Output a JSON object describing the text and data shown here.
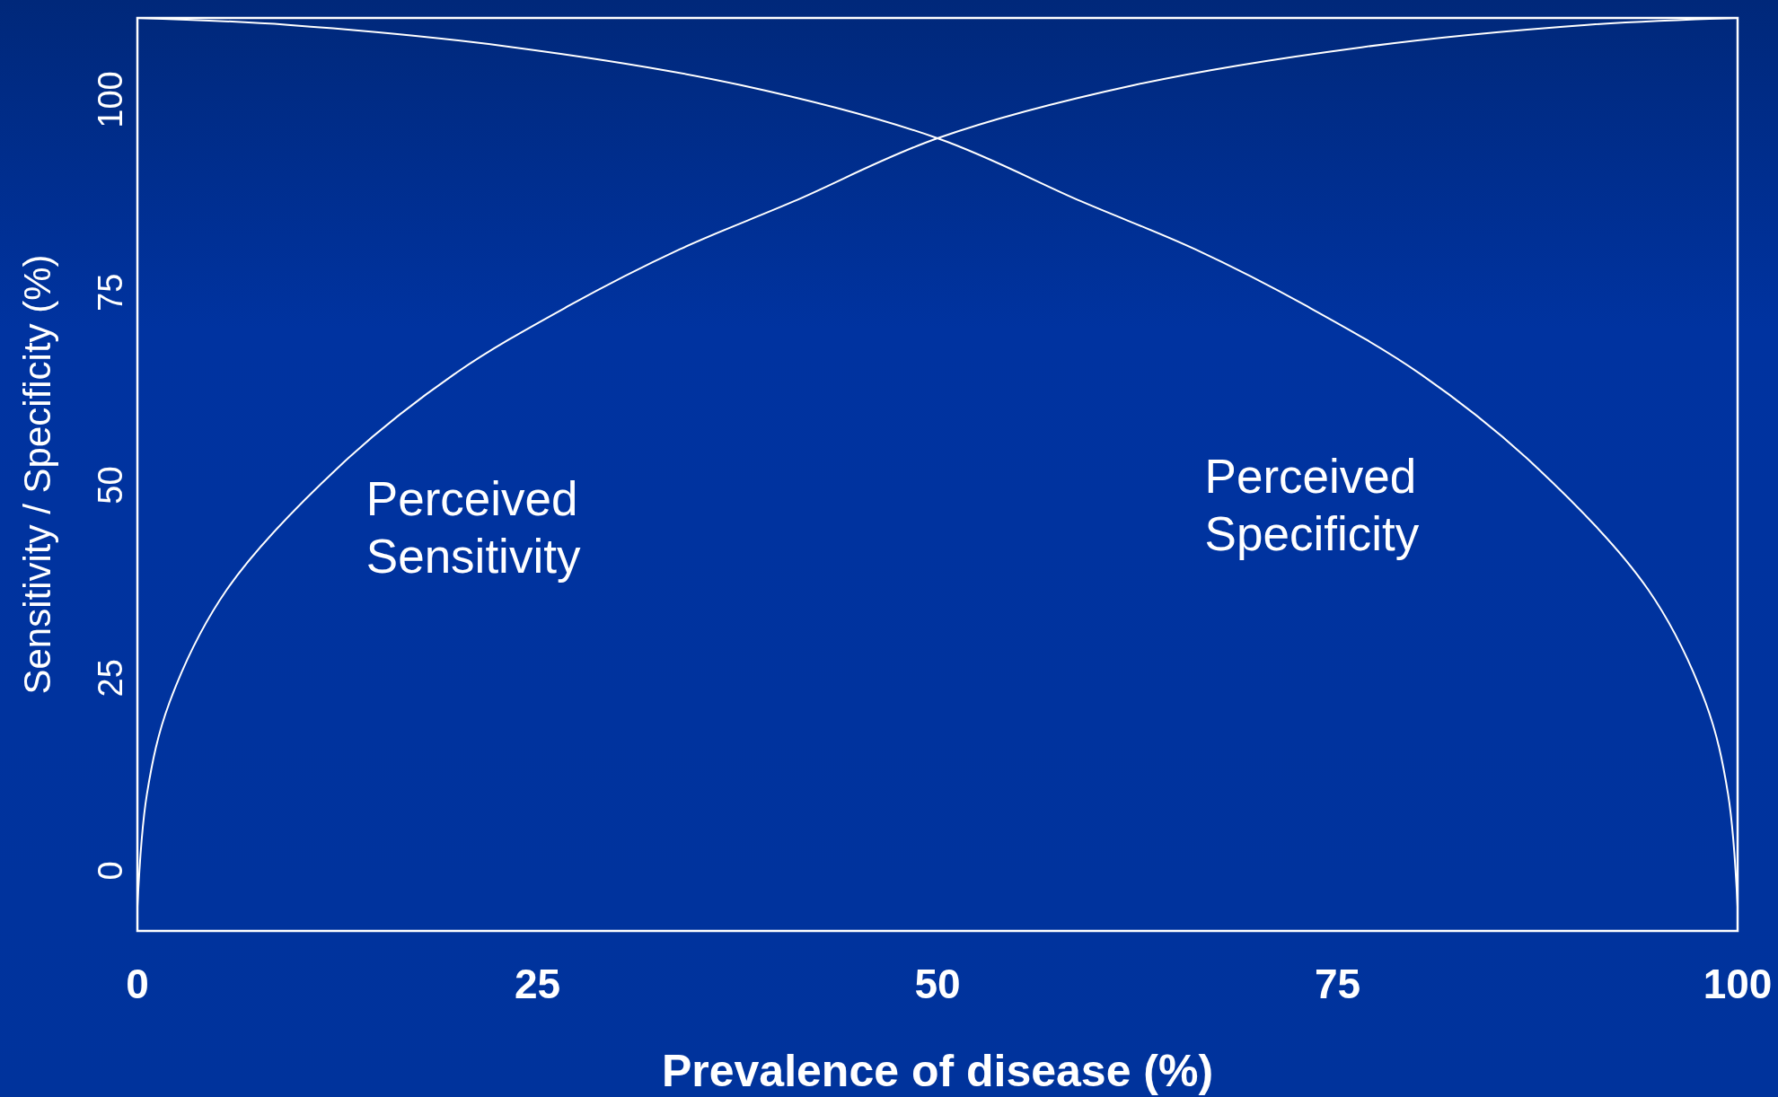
{
  "chart_data": {
    "type": "line",
    "xlabel": "Prevalence of disease (%)",
    "ylabel": "Sensitivity / Specificity (%)",
    "xlim": [
      0,
      100
    ],
    "ylim": [
      -7.8,
      110.6
    ],
    "xticks": [
      0,
      25,
      50,
      75,
      100
    ],
    "yticks": [
      0,
      25,
      50,
      75,
      100
    ],
    "grid": false,
    "marker": "none",
    "line_style": "solid",
    "series": [
      {
        "name": "Perceived Sensitivity",
        "color": "#ffffff",
        "x": [
          0,
          0.6,
          2,
          5.6,
          12.7,
          19.8,
          26.9,
          33.9,
          41,
          50,
          62.3,
          76.5,
          90.6,
          100
        ],
        "values": [
          -4.7,
          10,
          21.8,
          36.5,
          52.6,
          64.4,
          73.2,
          80.6,
          86.8,
          95,
          101.9,
          106.8,
          109.7,
          110.6
        ]
      },
      {
        "name": "Perceived Specificity",
        "color": "#ffffff",
        "x": [
          0,
          9.4,
          23.5,
          37.7,
          50,
          59,
          66.1,
          73.1,
          80.2,
          87.3,
          94.4,
          98,
          99.4,
          100
        ],
        "values": [
          110.6,
          109.7,
          106.8,
          101.9,
          95,
          86.8,
          80.6,
          73.2,
          64.4,
          52.6,
          36.5,
          21.8,
          10,
          -4.7
        ]
      }
    ]
  }
}
